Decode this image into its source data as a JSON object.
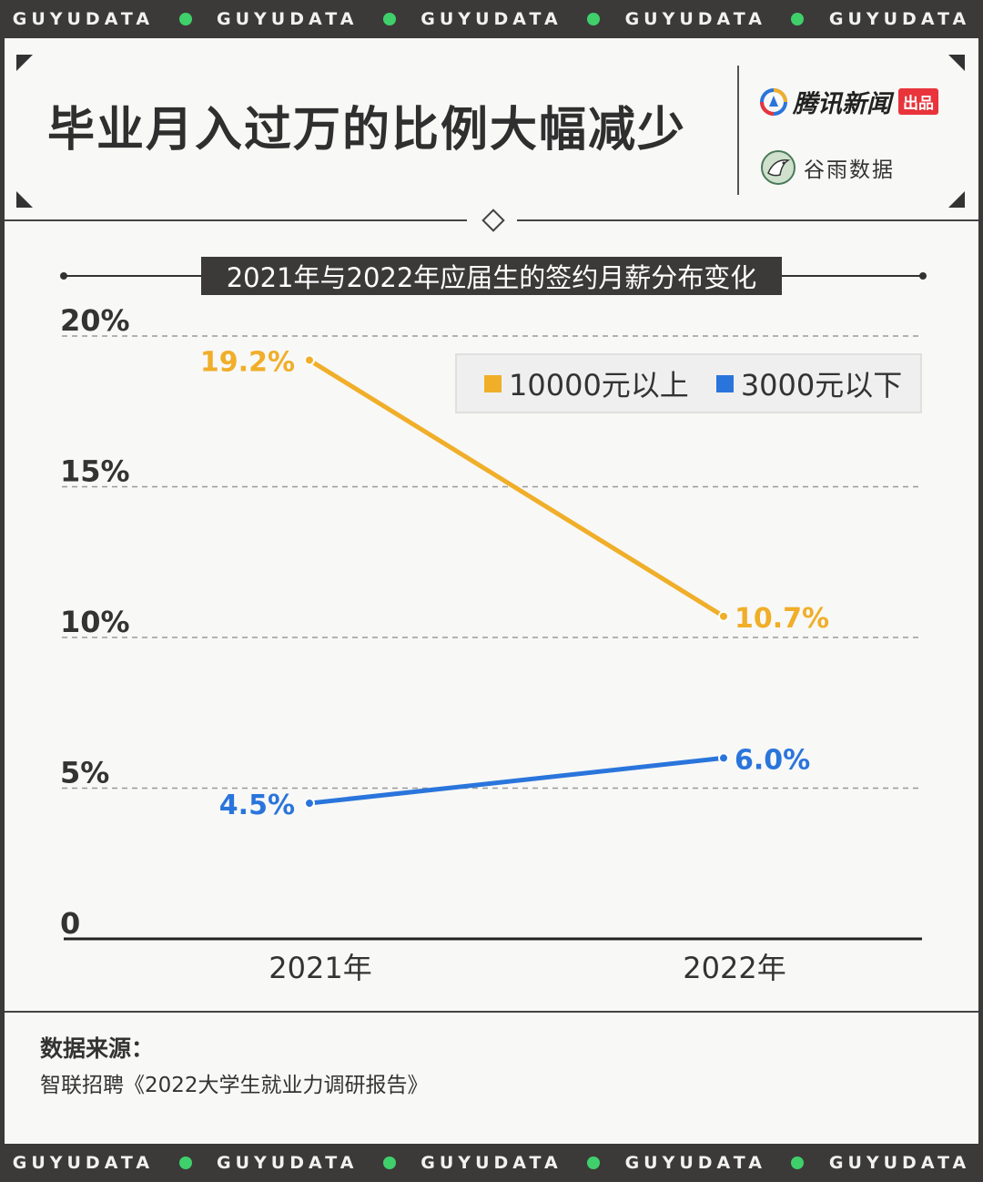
{
  "band": {
    "text": "GUYUDATA",
    "dot_color": "#3fd06b"
  },
  "header": {
    "title": "毕业月入过万的比例大幅减少",
    "brand1_name": "腾讯新闻",
    "brand1_tag": "出品",
    "brand2_name": "谷雨数据"
  },
  "chart_data": {
    "type": "line",
    "title": "2021年与2022年应届生的签约月薪分布变化",
    "categories": [
      "2021年",
      "2022年"
    ],
    "ylim": [
      0,
      20
    ],
    "yticks": [
      {
        "value": 0,
        "label": "0"
      },
      {
        "value": 5,
        "label": "5%"
      },
      {
        "value": 10,
        "label": "10%"
      },
      {
        "value": 15,
        "label": "15%"
      },
      {
        "value": 20,
        "label": "20%"
      }
    ],
    "grid": true,
    "legend_position": "top-right",
    "series": [
      {
        "name": "10000元以上",
        "color": "#f0ae29",
        "values": [
          19.2,
          10.7
        ],
        "labels": [
          "19.2%",
          "10.7%"
        ]
      },
      {
        "name": "3000元以下",
        "color": "#2a75dc",
        "values": [
          4.5,
          6.0
        ],
        "labels": [
          "4.5%",
          "6.0%"
        ]
      }
    ]
  },
  "source": {
    "label": "数据来源：",
    "text": "智联招聘《2022大学生就业力调研报告》"
  }
}
